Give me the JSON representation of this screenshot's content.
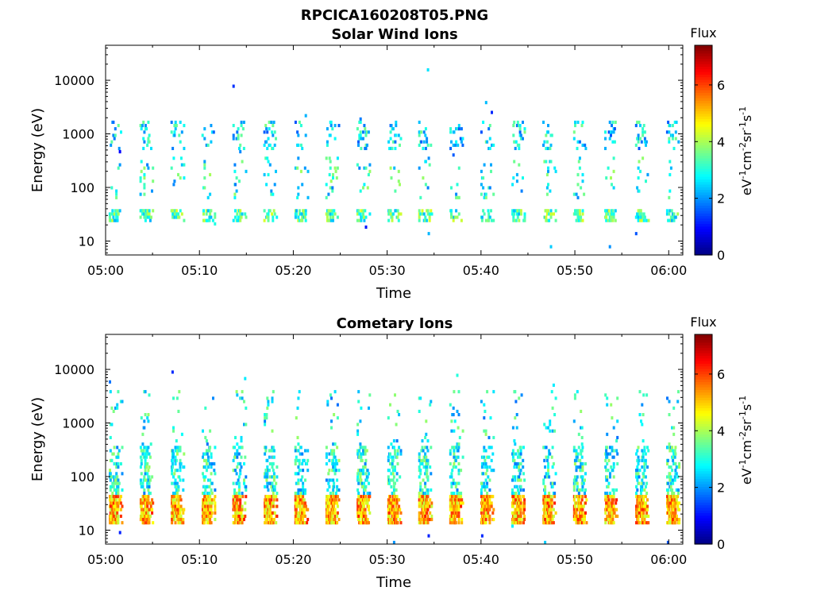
{
  "figure": {
    "title": "RPCICA160208T05.PNG"
  },
  "chart_data": [
    {
      "type": "heatmap",
      "title": "Solar Wind Ions",
      "xlabel": "Time",
      "ylabel": "Energy (eV)",
      "x_ticks": [
        "05:00",
        "05:10",
        "05:20",
        "05:30",
        "05:40",
        "05:50",
        "06:00"
      ],
      "y_ticks": [
        "10",
        "100",
        "1000",
        "10000"
      ],
      "y_scale": "log",
      "ylim": [
        5.5,
        45000
      ],
      "xlim_minutes": [
        0,
        61.5
      ],
      "colorbar": {
        "title": "Flux",
        "units": "eV-1cm-2sr-1s-1",
        "ticks": [
          "0",
          "2",
          "4",
          "6"
        ],
        "range": [
          0,
          7.4
        ],
        "colormap": "jet"
      },
      "pattern": {
        "cycle_minutes": 3.3,
        "low_band_eV": [
          22,
          42
        ],
        "mid_band_eV": [
          60,
          400
        ],
        "high_band_eV": [
          500,
          1800
        ],
        "low_flux": 3.3,
        "high_flux": 2.6
      }
    },
    {
      "type": "heatmap",
      "title": "Cometary Ions",
      "xlabel": "Time",
      "ylabel": "Energy (eV)",
      "x_ticks": [
        "05:00",
        "05:10",
        "05:20",
        "05:30",
        "05:40",
        "05:50",
        "06:00"
      ],
      "y_ticks": [
        "10",
        "100",
        "1000",
        "10000"
      ],
      "y_scale": "log",
      "ylim": [
        5.5,
        45000
      ],
      "xlim_minutes": [
        0,
        61.5
      ],
      "colorbar": {
        "title": "Flux",
        "units": "eV-1cm-2sr-1s-1",
        "ticks": [
          "0",
          "2",
          "4",
          "6"
        ],
        "range": [
          0,
          7.4
        ],
        "colormap": "jet"
      },
      "pattern": {
        "cycle_minutes": 3.3,
        "low_band_eV": [
          12,
          45
        ],
        "mid_band_eV": [
          45,
          350
        ],
        "high_band_eV": [
          400,
          4000
        ],
        "low_flux": 5.2,
        "high_flux": 2.8
      }
    }
  ]
}
